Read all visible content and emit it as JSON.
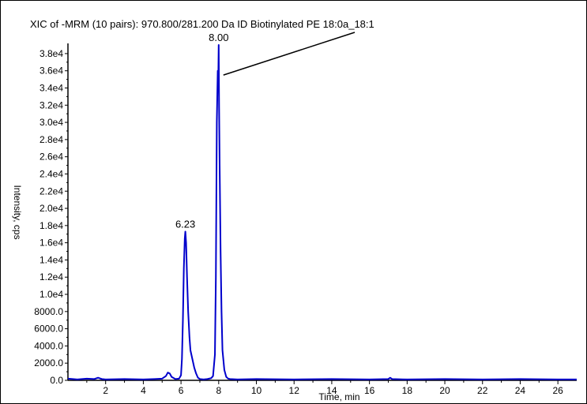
{
  "chart_data": {
    "type": "line",
    "title": "XIC of -MRM (10 pairs): 970.800/281.200 Da ID  Biotinylated PE 18:0a_18:1",
    "xlabel": "Time, min",
    "ylabel": "Intensity, cps",
    "xlim": [
      0,
      27
    ],
    "ylim": [
      0,
      39000
    ],
    "x_ticks": [
      2,
      4,
      6,
      8,
      10,
      12,
      14,
      16,
      18,
      20,
      22,
      24,
      26
    ],
    "x_tick_labels": [
      "2",
      "4",
      "6",
      "8",
      "10",
      "12",
      "14",
      "16",
      "18",
      "20",
      "22",
      "24",
      "26"
    ],
    "y_ticks": [
      0,
      2000,
      4000,
      6000,
      8000,
      10000,
      12000,
      14000,
      16000,
      18000,
      20000,
      22000,
      24000,
      26000,
      28000,
      30000,
      32000,
      34000,
      36000,
      38000
    ],
    "y_tick_labels": [
      "0.0",
      "2000.0",
      "4000.0",
      "6000.0",
      "8000.0",
      "1.0e4",
      "1.2e4",
      "1.4e4",
      "1.6e4",
      "1.8e4",
      "2.0e4",
      "2.2e4",
      "2.4e4",
      "2.6e4",
      "2.8e4",
      "3.0e4",
      "3.2e4",
      "3.4e4",
      "3.6e4",
      "3.8e4"
    ],
    "series": [
      {
        "color": "#0000cc",
        "x": [
          0.0,
          0.5,
          1.0,
          1.4,
          1.6,
          1.8,
          2.0,
          3.0,
          4.0,
          4.6,
          5.0,
          5.2,
          5.3,
          5.4,
          5.5,
          5.7,
          5.9,
          6.0,
          6.05,
          6.1,
          6.15,
          6.2,
          6.23,
          6.27,
          6.32,
          6.38,
          6.45,
          6.5,
          6.6,
          6.7,
          6.8,
          6.9,
          7.0,
          7.2,
          7.4,
          7.6,
          7.7,
          7.8,
          7.85,
          7.9,
          7.95,
          7.98,
          8.0,
          8.02,
          8.05,
          8.1,
          8.15,
          8.2,
          8.3,
          8.4,
          8.5,
          8.6,
          9.0,
          10.0,
          12.0,
          14.0,
          16.0,
          17.0,
          17.1,
          17.2,
          18.0,
          20.0,
          22.0,
          24.0,
          26.0,
          27.0
        ],
        "y": [
          200,
          100,
          200,
          150,
          300,
          150,
          100,
          150,
          100,
          150,
          200,
          500,
          900,
          800,
          400,
          150,
          200,
          600,
          2500,
          7000,
          13000,
          16500,
          17300,
          16000,
          12000,
          8000,
          5000,
          3500,
          2500,
          1500,
          800,
          300,
          150,
          100,
          150,
          250,
          500,
          3000,
          12000,
          30000,
          36000,
          35500,
          39000,
          32000,
          25000,
          15000,
          8000,
          3500,
          1200,
          400,
          200,
          150,
          100,
          150,
          100,
          150,
          100,
          150,
          300,
          150,
          100,
          150,
          100,
          150,
          100,
          100
        ]
      }
    ],
    "annotations": [
      {
        "text": "6.23",
        "x": 6.23,
        "y": 17300
      },
      {
        "text": "8.00",
        "x": 8.0,
        "y": 39000
      }
    ]
  }
}
